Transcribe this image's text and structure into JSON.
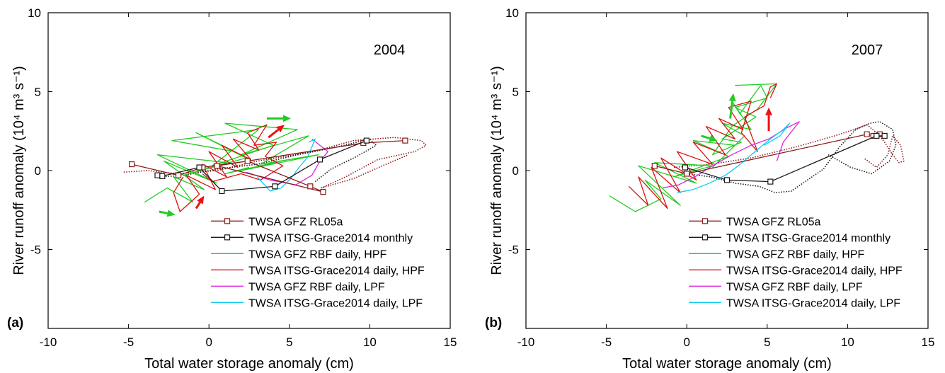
{
  "colors": {
    "gfz_rl05a": "#8b1a1a",
    "itsg_monthly": "#1a1a1a",
    "gfz_rbf_hpf": "#22cc22",
    "itsg_daily_hpf": "#dd1111",
    "gfz_rbf_lpf": "#dd22dd",
    "itsg_daily_lpf": "#11ccee",
    "arrow": "#ee1111",
    "arrow_green": "#22cc22"
  },
  "legend": [
    {
      "key": "gfz_rl05a",
      "label": "TWSA GFZ RL05a",
      "marker": "square"
    },
    {
      "key": "itsg_monthly",
      "label": "TWSA ITSG-Grace2014 monthly",
      "marker": "square"
    },
    {
      "key": "gfz_rbf_hpf",
      "label": "TWSA GFZ RBF daily, HPF",
      "marker": "none"
    },
    {
      "key": "itsg_daily_hpf",
      "label": "TWSA ITSG-Grace2014 daily, HPF",
      "marker": "none"
    },
    {
      "key": "gfz_rbf_lpf",
      "label": "TWSA GFZ RBF daily, LPF",
      "marker": "none"
    },
    {
      "key": "itsg_daily_lpf",
      "label": "TWSA ITSG-Grace2014 daily, LPF",
      "marker": "none"
    }
  ],
  "chart_data": [
    {
      "type": "line",
      "panel": "(a)",
      "title": "2004",
      "xlabel": "Total water storage anomaly (cm)",
      "ylabel": "River runoff anomaly (10⁴ m³ s⁻¹)",
      "xlim": [
        -10,
        15
      ],
      "ylim": [
        -10,
        10
      ],
      "xticks": [
        "-10",
        "-5",
        "0",
        "5",
        "10",
        "15"
      ],
      "yticks": [
        "-5",
        "0",
        "5",
        "10"
      ],
      "grid": false,
      "legend_position": "bottom-right",
      "series": [
        {
          "key": "gfz_rl05a",
          "name": "TWSA GFZ RL05a",
          "style": "solid-marker",
          "x": [
            -4.8,
            -1.9,
            -0.4,
            2.4,
            6.3,
            7.1,
            0.5,
            9.6,
            12.2
          ],
          "y": [
            0.4,
            -0.3,
            0.2,
            0.6,
            -1.0,
            -1.35,
            0.3,
            1.75,
            1.9
          ]
        },
        {
          "key": "itsg_monthly",
          "name": "TWSA ITSG-Grace2014 monthly",
          "style": "solid-marker",
          "x": [
            -3.2,
            -2.9,
            -0.6,
            0.8,
            4.1,
            6.9,
            9.8
          ],
          "y": [
            -0.3,
            -0.35,
            0.2,
            -1.3,
            -1.0,
            0.7,
            1.9
          ]
        },
        {
          "key": "gfz_rbf_hpf",
          "name": "TWSA GFZ RBF daily, HPF",
          "style": "solid",
          "x": [
            -4.0,
            -2.6,
            -1.0,
            -2.2,
            -0.3,
            -2.8,
            0.5,
            -3.2,
            1.1,
            -1.6,
            2.3,
            -0.8,
            1.6,
            -2.3,
            3.1,
            0.2,
            4.0,
            1.0,
            5.5,
            2.0,
            6.2,
            3.2,
            6.8,
            2.0,
            4.5,
            1.0,
            2.5
          ],
          "y": [
            -2.0,
            -1.1,
            -2.0,
            -0.4,
            -1.2,
            0.6,
            -0.8,
            1.0,
            0.5,
            -0.3,
            0.8,
            2.4,
            1.2,
            1.9,
            2.6,
            0.3,
            1.6,
            3.0,
            2.6,
            1.0,
            2.2,
            0.4,
            1.0,
            0.0,
            0.6,
            -0.2,
            0.2
          ]
        },
        {
          "key": "itsg_daily_hpf",
          "name": "TWSA ITSG-Grace2014 daily, HPF",
          "style": "solid",
          "x": [
            -1.6,
            -2.2,
            -1.8,
            -0.6,
            -1.4,
            0.4,
            -0.4,
            1.1,
            0.0,
            1.8,
            0.8,
            2.6,
            1.5,
            3.1,
            2.4,
            3.6,
            2.8,
            4.2,
            3.5,
            4.6,
            3.2,
            2.0,
            0.2,
            -0.4
          ],
          "y": [
            -0.4,
            -1.4,
            -2.6,
            -1.5,
            -0.3,
            -1.2,
            0.4,
            -0.4,
            1.2,
            0.2,
            1.6,
            0.7,
            2.0,
            1.3,
            2.4,
            2.9,
            1.6,
            1.8,
            0.9,
            0.3,
            -0.6,
            -0.2,
            -0.7,
            -0.2
          ]
        },
        {
          "key": "gfz_rbf_lpf",
          "name": "TWSA GFZ RBF daily, LPF",
          "style": "solid",
          "x": [
            2.3,
            3.8,
            5.4,
            6.4,
            6.9,
            7.4,
            6.4
          ],
          "y": [
            -0.1,
            -0.6,
            -0.9,
            -0.3,
            0.6,
            1.2,
            2.0
          ]
        },
        {
          "key": "itsg_daily_lpf",
          "name": "TWSA ITSG-Grace2014 daily, LPF",
          "style": "solid",
          "x": [
            3.0,
            3.8,
            4.5,
            5.1,
            5.6,
            6.1,
            6.4,
            6.6,
            6.2
          ],
          "y": [
            -0.4,
            -1.3,
            -1.1,
            -0.5,
            0.2,
            0.8,
            1.5,
            2.0,
            1.8
          ]
        },
        {
          "key": "gfz_rl05a",
          "name": "",
          "style": "dotted",
          "x": [
            -5.3,
            -3.8,
            -2.0,
            0.5,
            3.0,
            6.5,
            9.0,
            11.5,
            13.2,
            13.5,
            12.8,
            10.5,
            8.5,
            7.0,
            9.0,
            11.0,
            12.4
          ],
          "y": [
            -0.1,
            0.0,
            -0.2,
            0.0,
            0.6,
            1.2,
            1.9,
            2.1,
            1.9,
            1.6,
            1.2,
            0.7,
            -0.4,
            -1.1,
            -0.5,
            0.4,
            1.0
          ]
        },
        {
          "key": "itsg_monthly",
          "name": "",
          "style": "dotted",
          "x": [
            -3.0,
            -1.5,
            0.5,
            3.0,
            5.5,
            8.0,
            10.0,
            10.4,
            9.2,
            7.6,
            6.6
          ],
          "y": [
            -0.4,
            -0.3,
            0.1,
            0.4,
            1.0,
            1.5,
            2.0,
            1.6,
            0.9,
            0.1,
            -0.7
          ]
        }
      ],
      "arrows": [
        {
          "color_key": "arrow_green",
          "from": [
            3.6,
            3.3
          ],
          "to": [
            5.1,
            3.3
          ]
        },
        {
          "color_key": "arrow",
          "from": [
            3.7,
            2.1
          ],
          "to": [
            4.7,
            2.9
          ]
        },
        {
          "color_key": "arrow",
          "from": [
            -0.8,
            -2.4
          ],
          "to": [
            -0.3,
            -1.6
          ]
        },
        {
          "color_key": "arrow_green",
          "from": [
            -3.1,
            -2.6
          ],
          "to": [
            -2.1,
            -2.8
          ]
        }
      ]
    },
    {
      "type": "line",
      "panel": "(b)",
      "title": "2007",
      "xlabel": "Total water storage anomaly (cm)",
      "ylabel": "River runoff anomaly (10⁴ m³ s⁻¹)",
      "xlim": [
        -10,
        15
      ],
      "ylim": [
        -10,
        10
      ],
      "xticks": [
        "-10",
        "-5",
        "0",
        "5",
        "10",
        "15"
      ],
      "yticks": [
        "-5",
        "0",
        "5",
        "10"
      ],
      "grid": false,
      "legend_position": "bottom-right",
      "series": [
        {
          "key": "gfz_rl05a",
          "name": "TWSA GFZ RL05a",
          "style": "solid-marker",
          "x": [
            -2.0,
            0.0,
            11.2,
            11.6,
            12.0
          ],
          "y": [
            0.3,
            -0.2,
            2.3,
            2.2,
            2.3
          ]
        },
        {
          "key": "itsg_monthly",
          "name": "TWSA ITSG-Grace2014 monthly",
          "style": "solid-marker",
          "x": [
            -0.1,
            2.5,
            5.2,
            11.8,
            12.3
          ],
          "y": [
            0.2,
            -0.6,
            -0.7,
            2.2,
            2.2
          ]
        },
        {
          "key": "gfz_rbf_hpf",
          "name": "TWSA GFZ RBF daily, HPF",
          "style": "solid",
          "x": [
            -4.8,
            -3.2,
            -1.6,
            -2.6,
            -0.4,
            -3.0,
            0.6,
            -2.0,
            1.6,
            -0.8,
            2.6,
            0.4,
            3.0,
            1.6,
            3.6,
            2.2,
            4.0,
            2.8,
            3.3,
            4.6,
            5.0,
            3.0,
            4.3,
            2.2,
            3.4,
            1.6,
            2.8,
            4.4,
            5.6,
            3.0
          ],
          "y": [
            -1.6,
            -2.6,
            -1.8,
            -0.6,
            -2.2,
            0.3,
            -0.8,
            0.5,
            0.3,
            -0.4,
            0.9,
            1.9,
            1.6,
            0.2,
            2.2,
            3.0,
            2.6,
            4.4,
            3.6,
            5.4,
            4.6,
            4.0,
            3.4,
            2.0,
            1.8,
            1.0,
            2.8,
            3.9,
            5.5,
            5.4
          ]
        },
        {
          "key": "itsg_daily_hpf",
          "name": "TWSA ITSG-Grace2014 daily, HPF",
          "style": "solid",
          "x": [
            -3.6,
            -2.4,
            -3.0,
            -1.2,
            -2.2,
            -0.4,
            -1.6,
            0.6,
            -0.6,
            1.6,
            0.4,
            2.4,
            1.2,
            3.0,
            2.0,
            3.5,
            2.6,
            4.0,
            3.4,
            4.4,
            3.6,
            4.8,
            5.2,
            5.6,
            5.2
          ],
          "y": [
            -1.0,
            -2.2,
            -0.4,
            -2.4,
            0.2,
            -1.4,
            0.8,
            -0.6,
            1.2,
            0.4,
            1.8,
            1.0,
            2.8,
            2.0,
            3.3,
            2.6,
            4.0,
            4.4,
            2.4,
            1.2,
            3.4,
            4.1,
            5.3,
            5.5,
            4.6
          ]
        },
        {
          "key": "gfz_rbf_lpf",
          "name": "TWSA GFZ RBF daily, LPF",
          "style": "solid",
          "x": [
            -1.5,
            -0.5,
            0.5,
            1.6,
            2.8,
            4.0,
            5.1,
            6.2,
            7.0,
            6.0,
            5.6
          ],
          "y": [
            -1.1,
            -0.9,
            -0.4,
            0.3,
            1.0,
            1.6,
            2.0,
            2.7,
            3.1,
            1.8,
            0.6
          ]
        },
        {
          "key": "itsg_daily_lpf",
          "name": "TWSA ITSG-Grace2014 daily, LPF",
          "style": "solid",
          "x": [
            -0.6,
            0.4,
            1.4,
            2.4,
            3.2,
            3.9,
            4.6,
            5.2,
            6.0,
            6.4,
            5.8,
            4.8
          ],
          "y": [
            -1.4,
            -1.2,
            -0.8,
            -0.3,
            0.3,
            0.9,
            1.5,
            2.0,
            2.6,
            3.0,
            2.2,
            1.6
          ]
        },
        {
          "key": "gfz_rl05a",
          "name": "",
          "style": "dotted",
          "x": [
            -0.8,
            1.5,
            4.0,
            6.8,
            9.2,
            10.4,
            11.2,
            11.8,
            12.3,
            12.8,
            13.2,
            13.5,
            13.3,
            12.8,
            12.5,
            11.8,
            11.0
          ],
          "y": [
            0.2,
            0.4,
            0.8,
            1.5,
            2.2,
            2.6,
            2.9,
            2.4,
            1.8,
            1.0,
            0.5,
            0.6,
            1.6,
            2.2,
            1.0,
            0.2,
            0.8
          ]
        },
        {
          "key": "itsg_monthly",
          "name": "",
          "style": "dotted",
          "x": [
            0.0,
            1.5,
            3.0,
            4.5,
            5.5,
            6.5,
            7.5,
            8.5,
            9.5,
            10.5,
            11.4,
            12.0,
            12.8,
            13.0,
            12.6,
            11.5,
            10.2,
            8.8
          ],
          "y": [
            -0.2,
            -0.4,
            -0.8,
            -1.0,
            -1.4,
            -1.3,
            -0.6,
            0.1,
            1.5,
            2.6,
            3.0,
            3.1,
            2.6,
            1.6,
            0.6,
            -0.2,
            0.2,
            1.0
          ]
        }
      ],
      "arrows": [
        {
          "color_key": "arrow_green",
          "from": [
            2.7,
            3.3
          ],
          "to": [
            2.9,
            4.9
          ]
        },
        {
          "color_key": "arrow",
          "from": [
            5.1,
            2.5
          ],
          "to": [
            5.1,
            4.0
          ]
        },
        {
          "color_key": "arrow_green",
          "from": [
            0.9,
            2.2
          ],
          "to": [
            1.9,
            1.9
          ]
        }
      ]
    }
  ]
}
